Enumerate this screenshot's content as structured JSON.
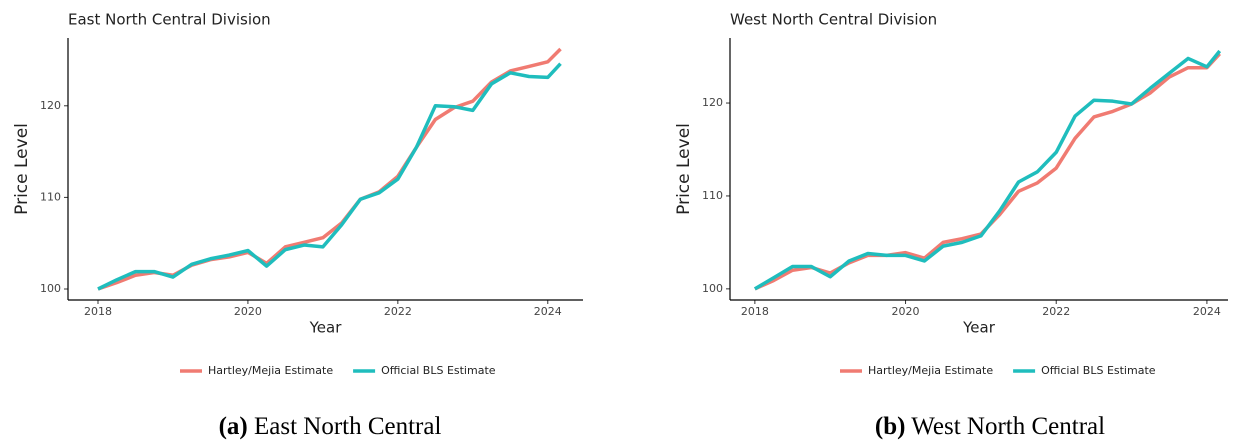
{
  "chart_data": [
    {
      "type": "line",
      "title": "East North Central Division",
      "x_label": "Year",
      "y_label": "Price Level",
      "caption_tag": "(a)",
      "caption": "East North Central",
      "legend": "bottom",
      "x": [
        2018,
        2018.25,
        2018.5,
        2018.75,
        2019,
        2019.25,
        2019.5,
        2019.75,
        2020,
        2020.25,
        2020.5,
        2020.75,
        2021,
        2021.25,
        2021.5,
        2021.75,
        2022,
        2022.25,
        2022.5,
        2022.75,
        2023,
        2023.25,
        2023.5,
        2023.75,
        2024,
        2024.17
      ],
      "series": [
        {
          "name": "Hartley/Mejia Estimate",
          "color": "#f07b72",
          "values": [
            100,
            100.7,
            101.5,
            101.8,
            101.5,
            102.6,
            103.2,
            103.5,
            104.0,
            102.8,
            104.6,
            105.1,
            105.6,
            107.2,
            109.8,
            110.6,
            112.3,
            115.5,
            118.5,
            119.8,
            120.5,
            122.6,
            123.8,
            124.3,
            124.8,
            126.2
          ]
        },
        {
          "name": "Official BLS Estimate",
          "color": "#1fbdbd",
          "values": [
            100,
            101.0,
            101.9,
            101.9,
            101.3,
            102.7,
            103.3,
            103.7,
            104.2,
            102.5,
            104.3,
            104.8,
            104.6,
            107.0,
            109.8,
            110.5,
            112.0,
            115.5,
            120.0,
            119.9,
            119.5,
            122.4,
            123.6,
            123.2,
            123.1,
            124.6
          ]
        }
      ],
      "xlim": [
        2017.6,
        2024.47
      ],
      "ylim": [
        98.8,
        127.4
      ],
      "xticks": [
        2018,
        2020,
        2022,
        2024
      ],
      "yticks": [
        100,
        110,
        120
      ]
    },
    {
      "type": "line",
      "title": "West North Central Division",
      "x_label": "Year",
      "y_label": "Price Level",
      "caption_tag": "(b)",
      "caption": "West North Central",
      "legend": "bottom",
      "x": [
        2018,
        2018.25,
        2018.5,
        2018.75,
        2019,
        2019.25,
        2019.5,
        2019.75,
        2020,
        2020.25,
        2020.5,
        2020.75,
        2021,
        2021.25,
        2021.5,
        2021.75,
        2022,
        2022.25,
        2022.5,
        2022.75,
        2023,
        2023.25,
        2023.5,
        2023.75,
        2024,
        2024.17
      ],
      "series": [
        {
          "name": "Hartley/Mejia Estimate",
          "color": "#f07b72",
          "values": [
            100,
            100.9,
            102.0,
            102.3,
            101.7,
            102.8,
            103.6,
            103.6,
            103.9,
            103.3,
            105.0,
            105.4,
            105.9,
            108.0,
            110.5,
            111.4,
            113.0,
            116.2,
            118.5,
            119.1,
            119.9,
            121.1,
            122.8,
            123.8,
            123.8,
            125.3
          ]
        },
        {
          "name": "Official BLS Estimate",
          "color": "#1fbdbd",
          "values": [
            100,
            101.2,
            102.4,
            102.4,
            101.3,
            103.0,
            103.8,
            103.6,
            103.6,
            103.0,
            104.6,
            105.0,
            105.7,
            108.4,
            111.5,
            112.6,
            114.7,
            118.6,
            120.3,
            120.2,
            119.9,
            121.6,
            123.2,
            124.8,
            123.9,
            125.6
          ]
        }
      ],
      "xlim": [
        2017.67,
        2024.28
      ],
      "ylim": [
        98.8,
        127.0
      ],
      "xticks": [
        2018,
        2020,
        2022,
        2024
      ],
      "yticks": [
        100,
        110,
        120
      ]
    }
  ]
}
